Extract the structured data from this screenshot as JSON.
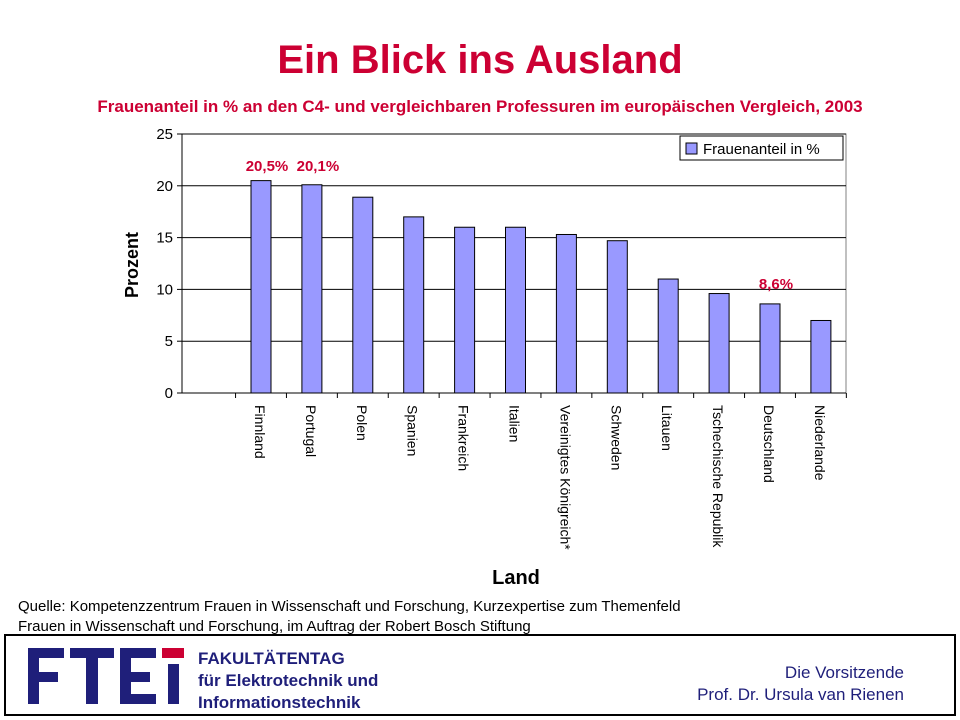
{
  "title": "Ein Blick ins Ausland",
  "subtitle": "Frauenanteil in % an den C4- und vergleichbaren Professuren im europäischen Vergleich, 2003",
  "source": {
    "line1": "Quelle: Kompetenzzentrum Frauen in Wissenschaft und Forschung, Kurzexpertise zum Themenfeld",
    "line2": "Frauen in Wissenschaft und Forschung, im Auftrag der Robert Bosch Stiftung"
  },
  "footer": {
    "faculty_line1": "FAKULTÄTENTAG",
    "faculty_line2": "für Elektrotechnik und",
    "faculty_line3": "Informationstechnik",
    "chair_line1": "Die Vorsitzende",
    "chair_line2": "Prof. Dr. Ursula van Rienen",
    "logo_text": "FTEI",
    "colors": {
      "logo_blue": "#1f1f7a",
      "logo_red": "#cc0033"
    }
  },
  "chart_data": {
    "type": "bar",
    "categories": [
      "Finnland",
      "Portugal",
      "Polen",
      "Spanien",
      "Frankreich",
      "Italien",
      "Vereinigtes Königreich*",
      "Schweden",
      "Litauen",
      "Tschechische Republik",
      "Deutschland",
      "Niederlande"
    ],
    "series": [
      {
        "name": "Frauenanteil in %",
        "values": [
          20.5,
          20.1,
          18.9,
          17.0,
          16.0,
          16.0,
          15.3,
          14.7,
          11.0,
          9.6,
          8.6,
          7.0
        ]
      }
    ],
    "data_labels": [
      {
        "category": "Finnland",
        "text": "20,5%"
      },
      {
        "category": "Portugal",
        "text": "20,1%"
      },
      {
        "category": "Deutschland",
        "text": "8,6%"
      }
    ],
    "xlabel": "Land",
    "ylabel": "Prozent",
    "ylim": [
      0,
      25
    ],
    "yticks": [
      0,
      5,
      10,
      15,
      20,
      25
    ],
    "grid": true,
    "legend": "top-right",
    "colors": {
      "bar_fill": "#9999ff",
      "bar_stroke": "#000000",
      "data_label": "#cc0033"
    }
  }
}
